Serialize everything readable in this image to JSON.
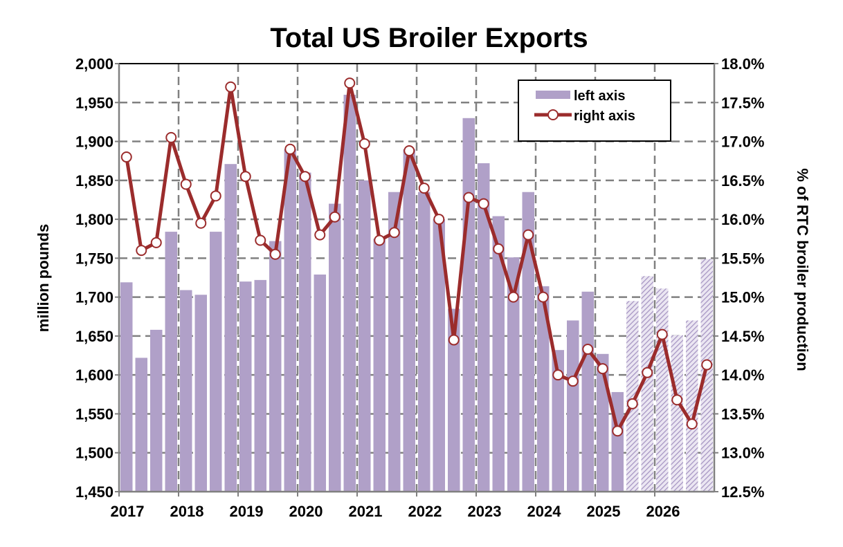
{
  "chart_data": {
    "type": "bar+line",
    "title": "Total US Broiler Exports",
    "ylabel": "million pounds",
    "ylabel_right": "% of RTC broiler production",
    "ylim": [
      1450,
      2000
    ],
    "ylim_right": [
      12.5,
      18.0
    ],
    "yticks": [
      "1,450",
      "1,500",
      "1,550",
      "1,600",
      "1,650",
      "1,700",
      "1,750",
      "1,800",
      "1,850",
      "1,900",
      "1,950",
      "2,000"
    ],
    "yticks_right": [
      "12.5%",
      "13.0%",
      "13.5%",
      "14.0%",
      "14.5%",
      "15.0%",
      "15.5%",
      "16.0%",
      "16.5%",
      "17.0%",
      "17.5%",
      "18.0%"
    ],
    "xticks": [
      "2017",
      "2018",
      "2019",
      "2020",
      "2021",
      "2022",
      "2023",
      "2024",
      "2025",
      "2026"
    ],
    "quarters_per_year": 4,
    "forecast_start_index": 34,
    "grid": true,
    "legend_position": "top-right",
    "colors": {
      "bar": "#b0a0c8",
      "line": "#9b2c2c",
      "grid": "#808080"
    },
    "series": [
      {
        "name": "left axis",
        "type": "bar",
        "axis": "left",
        "values": [
          1719,
          1622,
          1658,
          1784,
          1709,
          1703,
          1784,
          1871,
          1720,
          1722,
          1772,
          1890,
          1860,
          1729,
          1820,
          1960,
          1850,
          1775,
          1835,
          1890,
          1835,
          1800,
          1685,
          1930,
          1872,
          1804,
          1751,
          1835,
          1714,
          1632,
          1670,
          1707,
          1627,
          1578,
          1695,
          1727,
          1711,
          1651,
          1670,
          1749
        ]
      },
      {
        "name": "right axis",
        "type": "line",
        "axis": "right",
        "values": [
          16.8,
          15.6,
          15.7,
          17.05,
          16.45,
          15.95,
          16.3,
          17.7,
          16.55,
          15.73,
          15.55,
          16.9,
          16.55,
          15.8,
          16.03,
          17.75,
          16.97,
          15.73,
          15.83,
          16.88,
          16.4,
          16.0,
          14.45,
          16.28,
          16.2,
          15.62,
          15.0,
          15.8,
          15.0,
          14.0,
          13.92,
          14.33,
          14.08,
          13.28,
          13.63,
          14.03,
          14.52,
          13.68,
          13.37,
          14.13
        ]
      }
    ]
  }
}
